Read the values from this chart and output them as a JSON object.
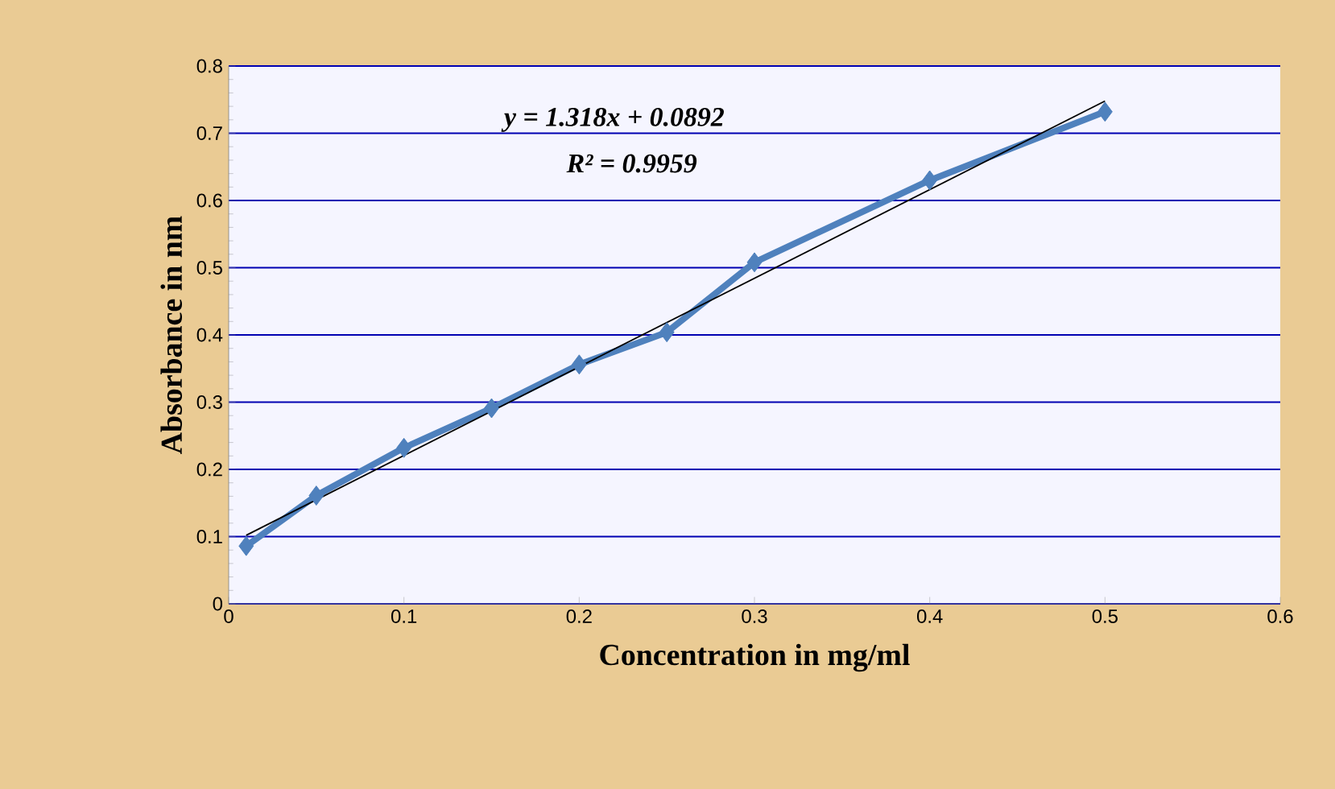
{
  "chart_data": {
    "type": "line",
    "xlabel": "Concentration in mg/ml",
    "ylabel": "Absorbance in nm",
    "xlim": [
      0,
      0.6
    ],
    "ylim": [
      0,
      0.8
    ],
    "xticks": [
      0,
      0.1,
      0.2,
      0.3,
      0.4,
      0.5,
      0.6
    ],
    "yticks": [
      0,
      0.1,
      0.2,
      0.3,
      0.4,
      0.5,
      0.6,
      0.7,
      0.8
    ],
    "grid": "y",
    "marker": "diamond",
    "series": [
      {
        "color": "#4f81bd",
        "x": [
          0.01,
          0.05,
          0.1,
          0.15,
          0.2,
          0.25,
          0.3,
          0.4,
          0.5
        ],
        "values": [
          0.086,
          0.161,
          0.232,
          0.291,
          0.356,
          0.404,
          0.508,
          0.63,
          0.732
        ]
      },
      {
        "type": "line",
        "color": "#000000",
        "marker": "none",
        "x": [
          0.01,
          0.5
        ],
        "values": [
          0.102,
          0.748
        ]
      }
    ],
    "annotations": [
      "*y = 1.318x + 0.0892*",
      "*R² = 0.9959*"
    ]
  }
}
